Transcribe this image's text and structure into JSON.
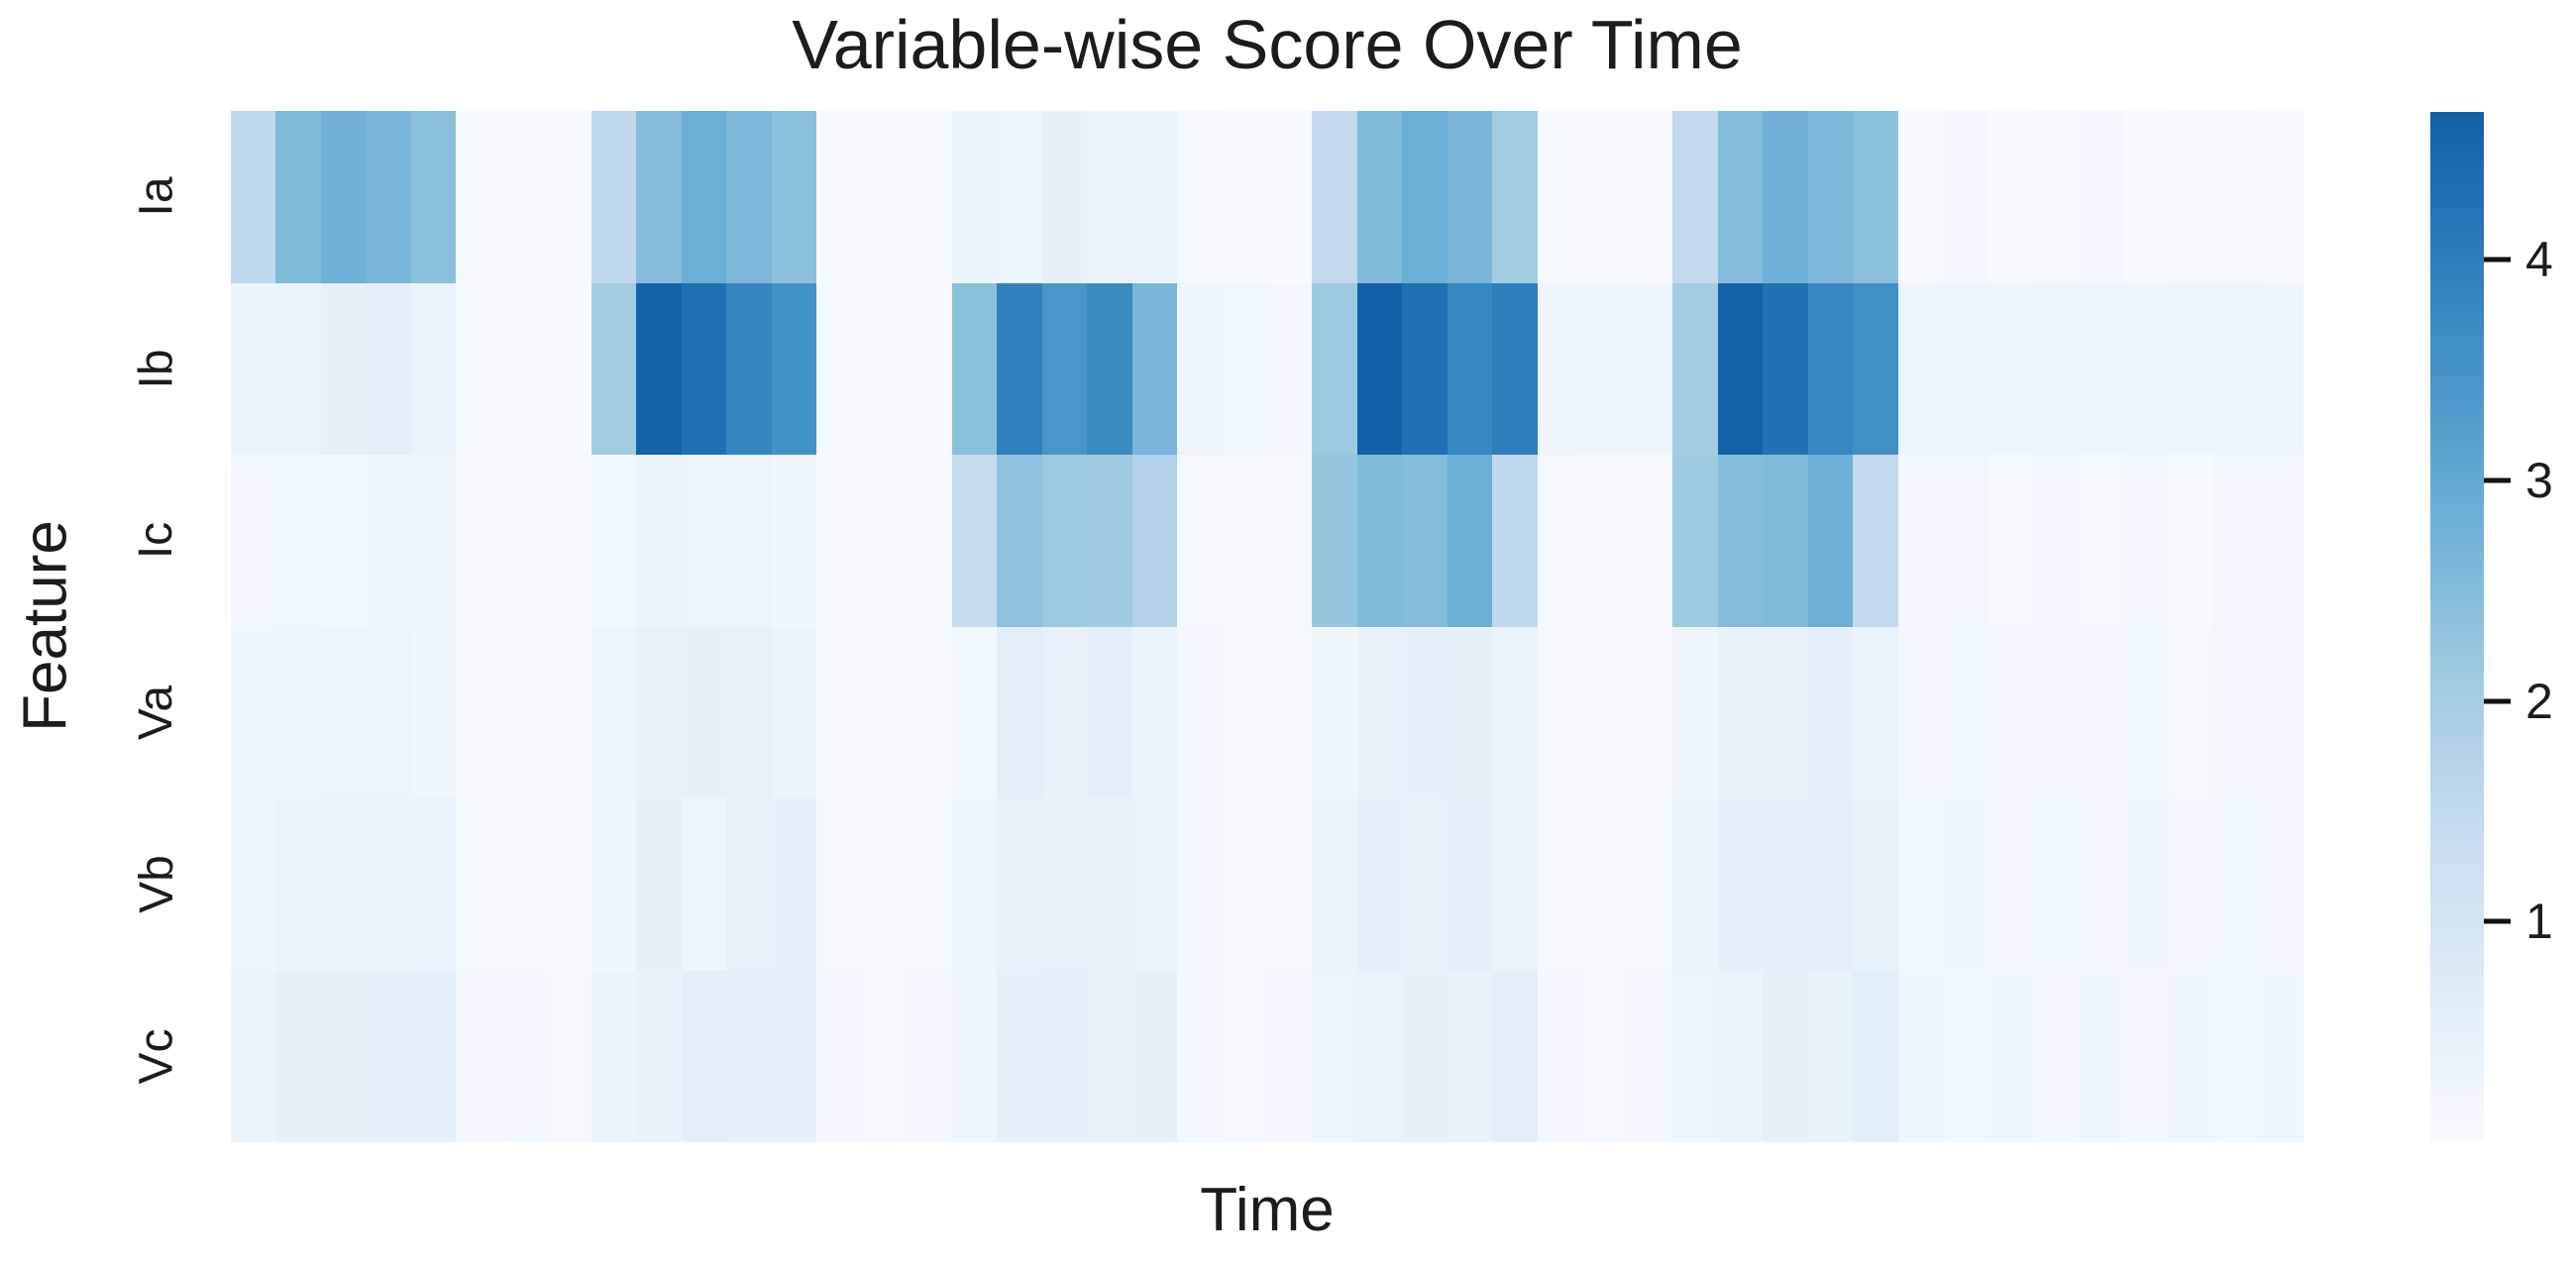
{
  "chart_data": {
    "type": "heatmap",
    "title": "Variable-wise Score Over Time",
    "xlabel": "Time",
    "ylabel": "Feature",
    "rows": [
      "Ia",
      "Ib",
      "Ic",
      "Va",
      "Vb",
      "Vc"
    ],
    "n_cols": 46,
    "vmin": 0,
    "vmax": 4.67,
    "grid": false,
    "legend_position": "none",
    "colorbar": {
      "position": "right",
      "ticks": [
        1,
        2,
        3,
        4
      ]
    },
    "palette": {
      "name": "blues-truncated",
      "t_max": 0.82,
      "stops": [
        {
          "t": 0.0,
          "c": "#f7fbff"
        },
        {
          "t": 0.125,
          "c": "#deebf7"
        },
        {
          "t": 0.25,
          "c": "#c6dbef"
        },
        {
          "t": 0.375,
          "c": "#9ecae1"
        },
        {
          "t": 0.5,
          "c": "#6baed6"
        },
        {
          "t": 0.625,
          "c": "#4292c6"
        },
        {
          "t": 0.75,
          "c": "#2171b5"
        },
        {
          "t": 0.875,
          "c": "#08519c"
        },
        {
          "t": 1.0,
          "c": "#08306b"
        }
      ]
    },
    "values": [
      [
        1.55,
        2.55,
        2.8,
        2.65,
        2.4,
        0.06,
        0.05,
        0.05,
        1.55,
        2.5,
        2.85,
        2.6,
        2.4,
        0.06,
        0.05,
        0.06,
        0.35,
        0.3,
        0.5,
        0.37,
        0.35,
        0.08,
        0.06,
        0.06,
        1.5,
        2.55,
        2.85,
        2.65,
        2.05,
        0.06,
        0.05,
        0.06,
        1.5,
        2.5,
        2.8,
        2.6,
        2.4,
        0.05,
        0.12,
        0.05,
        0.07,
        0.15,
        0.05,
        0.11,
        0.09,
        0.05
      ],
      [
        0.33,
        0.38,
        0.5,
        0.58,
        0.36,
        0.06,
        0.05,
        0.05,
        2.05,
        4.6,
        4.3,
        3.85,
        3.55,
        0.1,
        0.07,
        0.07,
        2.4,
        3.95,
        3.45,
        3.7,
        2.65,
        0.25,
        0.2,
        0.13,
        2.15,
        4.65,
        4.3,
        3.8,
        4.0,
        0.27,
        0.25,
        0.25,
        2.05,
        4.6,
        4.25,
        3.8,
        3.6,
        0.3,
        0.3,
        0.3,
        0.3,
        0.3,
        0.3,
        0.3,
        0.3,
        0.3
      ],
      [
        0.14,
        0.19,
        0.19,
        0.21,
        0.25,
        0.06,
        0.05,
        0.06,
        0.19,
        0.32,
        0.28,
        0.3,
        0.24,
        0.06,
        0.05,
        0.09,
        1.4,
        2.35,
        2.15,
        2.1,
        1.8,
        0.09,
        0.06,
        0.09,
        2.25,
        2.55,
        2.5,
        2.85,
        1.55,
        0.09,
        0.06,
        0.06,
        2.15,
        2.5,
        2.55,
        2.8,
        1.5,
        0.12,
        0.16,
        0.09,
        0.12,
        0.09,
        0.14,
        0.06,
        0.16,
        0.12
      ],
      [
        0.22,
        0.27,
        0.29,
        0.3,
        0.24,
        0.09,
        0.06,
        0.06,
        0.29,
        0.46,
        0.49,
        0.44,
        0.34,
        0.09,
        0.06,
        0.09,
        0.19,
        0.57,
        0.44,
        0.56,
        0.32,
        0.12,
        0.09,
        0.09,
        0.24,
        0.44,
        0.47,
        0.49,
        0.37,
        0.09,
        0.06,
        0.09,
        0.24,
        0.41,
        0.44,
        0.47,
        0.37,
        0.14,
        0.19,
        0.12,
        0.16,
        0.12,
        0.19,
        0.09,
        0.16,
        0.14
      ],
      [
        0.26,
        0.34,
        0.34,
        0.35,
        0.37,
        0.09,
        0.07,
        0.06,
        0.21,
        0.51,
        0.31,
        0.46,
        0.48,
        0.09,
        0.07,
        0.09,
        0.31,
        0.46,
        0.45,
        0.42,
        0.37,
        0.12,
        0.09,
        0.1,
        0.33,
        0.52,
        0.45,
        0.54,
        0.34,
        0.1,
        0.08,
        0.1,
        0.33,
        0.52,
        0.48,
        0.54,
        0.46,
        0.19,
        0.22,
        0.16,
        0.2,
        0.16,
        0.21,
        0.14,
        0.2,
        0.18
      ],
      [
        0.33,
        0.5,
        0.49,
        0.48,
        0.52,
        0.12,
        0.16,
        0.09,
        0.33,
        0.42,
        0.56,
        0.55,
        0.52,
        0.12,
        0.09,
        0.12,
        0.24,
        0.48,
        0.55,
        0.46,
        0.5,
        0.14,
        0.11,
        0.12,
        0.31,
        0.37,
        0.5,
        0.42,
        0.57,
        0.12,
        0.1,
        0.12,
        0.31,
        0.34,
        0.5,
        0.42,
        0.59,
        0.22,
        0.19,
        0.24,
        0.18,
        0.22,
        0.16,
        0.22,
        0.19,
        0.24
      ]
    ]
  }
}
